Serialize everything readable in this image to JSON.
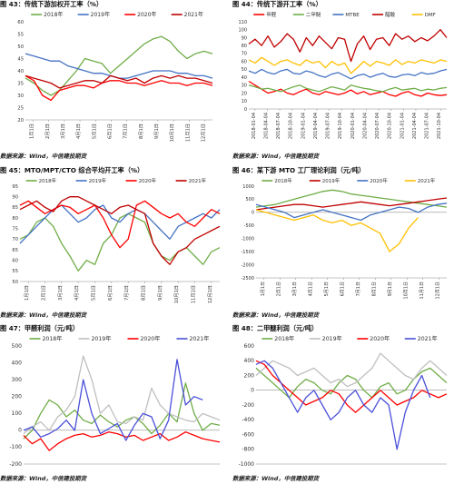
{
  "figures": [
    {
      "title": "图 43：传统下游加权开工率（%）",
      "source": "数据来源：Wind，中信建投期货",
      "chart_data": {
        "type": "line",
        "x_ticks": [
          "1月1日",
          "2月1日",
          "3月1日",
          "4月1日",
          "5月1日",
          "6月1日",
          "7月1日",
          "8月1日",
          "9月1日",
          "10月1日",
          "11月1日",
          "12月1日"
        ],
        "yticks": [
          20,
          25,
          30,
          35,
          40,
          45,
          50,
          55,
          60
        ],
        "ylim": [
          20,
          60
        ],
        "legend_position": "top",
        "series": [
          {
            "name": "2018年",
            "color": "#70ad47",
            "values": [
              37,
              35,
              32,
              30,
              32,
              36,
              40,
              45,
              44,
              43,
              39,
              42,
              45,
              48,
              51,
              53,
              54,
              52,
              48,
              45,
              47,
              48,
              47
            ]
          },
          {
            "name": "2019年",
            "color": "#4472c4",
            "values": [
              47,
              46,
              45,
              44,
              44,
              42,
              41,
              40,
              39,
              39,
              38,
              37,
              37,
              38,
              39,
              40,
              40,
              40,
              39,
              39,
              38,
              38,
              37
            ]
          },
          {
            "name": "2020年",
            "color": "#ff0000",
            "values": [
              38,
              36,
              30,
              28,
              32,
              33,
              34,
              34,
              33,
              35,
              36,
              36,
              35,
              35,
              34,
              35,
              36,
              35,
              35,
              34,
              35,
              35,
              34
            ]
          },
          {
            "name": "2021年",
            "color": "#c00000",
            "values": [
              38,
              37,
              36,
              35,
              33,
              34,
              35,
              36,
              36,
              35,
              38,
              37,
              36,
              37,
              35,
              37,
              38,
              37,
              38,
              37,
              37,
              36,
              35
            ]
          }
        ]
      }
    },
    {
      "title": "图 44：传统下游开工率（%）",
      "source": "数据来源：Wind，中信建投期货",
      "chart_data": {
        "type": "line",
        "x_ticks": [
          "2018-01-04",
          "2018-04-04",
          "2018-07-04",
          "2018-10-04",
          "2019-01-04",
          "2019-04-04",
          "2019-07-04",
          "2019-10-04",
          "2020-01-04",
          "2020-04-04",
          "2020-07-04",
          "2020-10-04",
          "2021-01-04",
          "2021-04-04",
          "2021-07-04",
          "2021-10-04"
        ],
        "yticks": [
          0,
          10,
          20,
          30,
          40,
          50,
          60,
          70,
          80,
          90,
          100,
          110
        ],
        "ylim": [
          0,
          110
        ],
        "legend_position": "top",
        "series": [
          {
            "name": "甲醛",
            "color": "#ff0000",
            "values": [
              35,
              30,
              25,
              20,
              22,
              25,
              20,
              18,
              22,
              25,
              20,
              18,
              22,
              20,
              18,
              20,
              24,
              19,
              22,
              18,
              20,
              22,
              18,
              16,
              20,
              22,
              18,
              16,
              20,
              18,
              17,
              18
            ]
          },
          {
            "name": "二甲醚",
            "color": "#70ad47",
            "values": [
              30,
              28,
              25,
              26,
              24,
              22,
              25,
              28,
              30,
              26,
              24,
              22,
              25,
              28,
              26,
              24,
              30,
              28,
              26,
              25,
              23,
              22,
              25,
              27,
              24,
              25,
              26,
              23,
              25,
              24,
              26,
              27
            ]
          },
          {
            "name": "MTBE",
            "color": "#4472c4",
            "values": [
              48,
              45,
              50,
              46,
              44,
              48,
              50,
              45,
              44,
              48,
              46,
              42,
              40,
              44,
              46,
              42,
              38,
              42,
              44,
              40,
              43,
              45,
              41,
              40,
              43,
              44,
              42,
              46,
              44,
              45,
              48,
              50
            ]
          },
          {
            "name": "醋酸",
            "color": "#c00000",
            "values": [
              82,
              88,
              80,
              92,
              78,
              85,
              95,
              88,
              72,
              90,
              80,
              92,
              84,
              76,
              90,
              88,
              60,
              82,
              92,
              75,
              88,
              90,
              80,
              95,
              88,
              92,
              85,
              90,
              86,
              92,
              100,
              90
            ]
          },
          {
            "name": "DMF",
            "color": "#ffc000",
            "values": [
              62,
              58,
              65,
              60,
              55,
              60,
              62,
              58,
              55,
              62,
              58,
              60,
              52,
              60,
              55,
              58,
              45,
              52,
              60,
              54,
              60,
              58,
              55,
              62,
              56,
              60,
              58,
              62,
              60,
              58,
              62,
              60
            ]
          }
        ]
      }
    },
    {
      "title": "图 45：MTO/MPT/CTO 综合平均开工率（%）",
      "source": "数据来源：Wind，中信建投期货",
      "chart_data": {
        "type": "line",
        "x_ticks": [
          "1月1日",
          "2月1日",
          "3月1日",
          "4月1日",
          "5月1日",
          "6月1日",
          "7月1日",
          "8月1日",
          "9月1日",
          "10月1日",
          "11月1日",
          "12月1日"
        ],
        "yticks": [
          50,
          55,
          60,
          65,
          70,
          75,
          80,
          85,
          90,
          95
        ],
        "ylim": [
          50,
          95
        ],
        "legend_position": "top",
        "series": [
          {
            "name": "2018年",
            "color": "#70ad47",
            "values": [
              70,
              72,
              78,
              80,
              76,
              68,
              62,
              55,
              60,
              58,
              68,
              72,
              80,
              82,
              80,
              78,
              68,
              62,
              60,
              64,
              66,
              62,
              58,
              64,
              66
            ]
          },
          {
            "name": "2019年",
            "color": "#4472c4",
            "values": [
              68,
              72,
              76,
              80,
              84,
              86,
              82,
              78,
              80,
              84,
              86,
              80,
              78,
              82,
              84,
              82,
              78,
              74,
              70,
              76,
              78,
              80,
              82,
              80,
              84
            ]
          },
          {
            "name": "2020年",
            "color": "#ff0000",
            "values": [
              86,
              88,
              85,
              82,
              84,
              86,
              85,
              82,
              84,
              86,
              80,
              72,
              66,
              70,
              86,
              88,
              85,
              82,
              80,
              82,
              78,
              76,
              80,
              84,
              82
            ]
          },
          {
            "name": "2021年",
            "color": "#c00000",
            "values": [
              84,
              86,
              88,
              85,
              83,
              88,
              90,
              90,
              88,
              86,
              84,
              82,
              85,
              86,
              84,
              82,
              68,
              62,
              58,
              64,
              66,
              70,
              72,
              74,
              76
            ]
          }
        ]
      }
    },
    {
      "title": "图 46：某下游 MTO 工厂理论利润（元/吨）",
      "source": "数据来源：Wind，中信建投期货",
      "chart_data": {
        "type": "line",
        "x_ticks": [
          "1月1日",
          "2月1日",
          "3月1日",
          "4月1日",
          "5月1日",
          "6月1日",
          "7月1日",
          "8月1日",
          "9月1日",
          "10月1日",
          "11月1日",
          "12月1日"
        ],
        "yticks": [
          -2500,
          -2000,
          -1500,
          -1000,
          -500,
          0,
          500,
          1000
        ],
        "ylim": [
          -2500,
          1000
        ],
        "legend_position": "top",
        "series": [
          {
            "name": "2018年",
            "color": "#70ad47",
            "values": [
              200,
              250,
              300,
              400,
              500,
              600,
              700,
              800,
              850,
              800,
              700,
              650,
              600,
              550,
              500,
              450,
              400,
              350,
              300,
              250,
              200
            ]
          },
          {
            "name": "2019年",
            "color": "#c00000",
            "values": [
              100,
              150,
              200,
              250,
              300,
              300,
              250,
              200,
              250,
              300,
              350,
              400,
              350,
              300,
              250,
              300,
              350,
              400,
              450,
              500,
              550
            ]
          },
          {
            "name": "2020年",
            "color": "#4472c4",
            "values": [
              300,
              200,
              100,
              0,
              -200,
              -100,
              0,
              100,
              0,
              -100,
              -200,
              -300,
              -100,
              0,
              100,
              200,
              150,
              0,
              200,
              300,
              350
            ]
          },
          {
            "name": "2021年",
            "color": "#ffc000",
            "values": [
              100,
              0,
              -100,
              -200,
              -300,
              -200,
              -100,
              -300,
              -400,
              -300,
              -500,
              -400,
              -600,
              -800,
              -1500,
              -1200,
              -600,
              -200,
              null,
              null,
              null
            ]
          }
        ]
      }
    },
    {
      "title": "图 47：甲醛利润（元/吨）",
      "source": "数据来源：Wind，中信建投期货",
      "chart_data": {
        "type": "line",
        "yticks": [
          -200,
          -100,
          0,
          100,
          200,
          300,
          400,
          500
        ],
        "ylim": [
          -200,
          500
        ],
        "legend_position": "top",
        "series": [
          {
            "name": "2018年",
            "color": "#70ad47",
            "values": [
              -50,
              0,
              100,
              180,
              150,
              80,
              120,
              60,
              40,
              90,
              50,
              20,
              60,
              80,
              40,
              -20,
              30,
              100,
              50,
              280,
              100,
              0,
              40,
              30
            ]
          },
          {
            "name": "2019年",
            "color": "#bfbfbf",
            "values": [
              -20,
              20,
              50,
              0,
              80,
              120,
              200,
              440,
              300,
              100,
              150,
              50,
              40,
              80,
              60,
              250,
              150,
              100,
              80,
              60,
              50,
              100,
              80,
              60
            ]
          },
          {
            "name": "2020年",
            "color": "#ff0000",
            "values": [
              -30,
              -80,
              -50,
              -120,
              -80,
              -50,
              -30,
              -20,
              -40,
              -30,
              -10,
              -20,
              -40,
              -30,
              -60,
              -40,
              -20,
              -60,
              -40,
              -10,
              -30,
              -50,
              -60,
              -70
            ]
          },
          {
            "name": "2021年",
            "color": "#4b50d8",
            "values": [
              0,
              20,
              -40,
              -20,
              10,
              60,
              0,
              300,
              100,
              -20,
              10,
              40,
              -60,
              30,
              100,
              80,
              -50,
              60,
              420,
              150,
              200,
              180,
              null,
              null
            ]
          }
        ]
      }
    },
    {
      "title": "图 48：二甲醚利润（元/吨）",
      "source": "数据来源：Wind，中信建投期货",
      "chart_data": {
        "type": "line",
        "yticks": [
          -1000,
          -800,
          -600,
          -400,
          -200,
          0,
          200,
          400,
          600
        ],
        "ylim": [
          -1000,
          600
        ],
        "legend_position": "top",
        "series": [
          {
            "name": "2018年",
            "color": "#70ad47",
            "values": [
              300,
              200,
              100,
              0,
              -100,
              50,
              150,
              100,
              0,
              -50,
              100,
              200,
              150,
              0,
              -100,
              50,
              100,
              -50,
              0,
              150,
              250,
              300,
              200,
              100
            ]
          },
          {
            "name": "2019年",
            "color": "#bfbfbf",
            "values": [
              200,
              300,
              400,
              350,
              300,
              200,
              250,
              300,
              200,
              100,
              150,
              50,
              100,
              200,
              300,
              500,
              400,
              300,
              200,
              150,
              300,
              400,
              300,
              200
            ]
          },
          {
            "name": "2020年",
            "color": "#ff0000",
            "values": [
              400,
              350,
              200,
              100,
              0,
              -100,
              -200,
              -150,
              -100,
              0,
              -50,
              -200,
              -300,
              -200,
              -100,
              0,
              -100,
              -200,
              -150,
              -100,
              0,
              -50,
              -100,
              -50
            ]
          },
          {
            "name": "2021年",
            "color": "#4b50d8",
            "values": [
              350,
              400,
              300,
              100,
              -100,
              -300,
              -100,
              0,
              -200,
              -400,
              -300,
              -100,
              0,
              -200,
              -300,
              -100,
              -200,
              -800,
              -300,
              0,
              200,
              -100,
              null,
              null
            ]
          }
        ]
      }
    }
  ]
}
